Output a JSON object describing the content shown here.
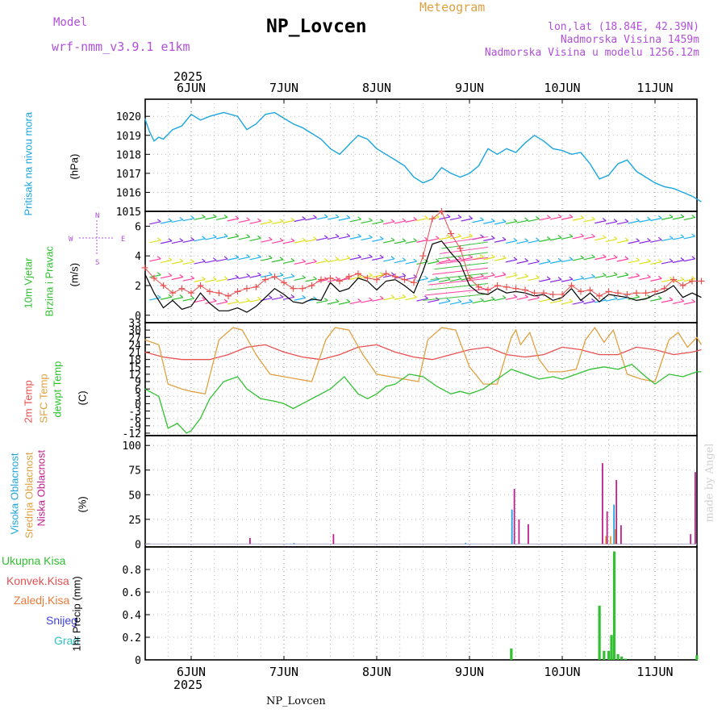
{
  "header": {
    "model_label": "Model",
    "model_name": "wrf-nmm_v3.9.1 e1km",
    "station": "NP_Lovcen",
    "product": "Meteogram",
    "lonlat": "lon,lat (18.84E, 42.39N)",
    "elev": "Nadmorska Visina 1459m",
    "elev_model": "Nadmorska Visina u modelu 1256.12m",
    "year_top": "2025",
    "year_bottom": "2025",
    "footer_station": "NP_Lovcen",
    "credit": "made by Angel"
  },
  "colors": {
    "pressure": "#1ba6e0",
    "temp2m": "#e85050",
    "sfc": "#e0a040",
    "dewpt": "#30c030",
    "cloud_high": "#1ba6e0",
    "cloud_mid": "#e0a040",
    "cloud_low": "#c0208f",
    "precip_total": "#30c030",
    "purple_text": "#b050d8"
  },
  "chart_data": [
    {
      "type": "line",
      "panel": "pressure",
      "ylabel_left": "Pritisak na nivou mora",
      "ylabel_unit": "(hPa)",
      "ylim": [
        1015,
        1020.9
      ],
      "yticks": [
        "1015",
        "1016",
        "1017",
        "1018",
        "1019",
        "1020"
      ],
      "x_days": [
        "6JUN",
        "7JUN",
        "8JUN",
        "9JUN",
        "10JUN",
        "11JUN"
      ],
      "series": [
        {
          "x": [
            -0.5,
            -0.45,
            -0.4,
            -0.35,
            -0.3,
            -0.2,
            -0.1,
            0,
            0.1,
            0.2,
            0.35,
            0.5,
            0.6,
            0.7,
            0.8,
            0.9,
            1.0,
            1.1,
            1.2,
            1.3,
            1.4,
            1.5,
            1.6,
            1.7,
            1.8,
            1.9,
            2.0,
            2.1,
            2.2,
            2.3,
            2.4,
            2.5,
            2.6,
            2.7,
            2.8,
            2.9,
            3.0,
            3.1,
            3.2,
            3.3,
            3.4,
            3.5,
            3.6,
            3.7,
            3.8,
            3.9,
            4.0,
            4.1,
            4.2,
            4.3,
            4.4,
            4.5,
            4.6,
            4.7,
            4.8,
            4.9,
            5.0,
            5.1,
            5.2,
            5.3,
            5.4,
            5.5
          ],
          "values": [
            1019.9,
            1019.2,
            1018.7,
            1018.9,
            1018.8,
            1019.3,
            1019.5,
            1020.1,
            1019.8,
            1020.0,
            1020.2,
            1020.0,
            1019.3,
            1019.6,
            1020.1,
            1020.2,
            1019.9,
            1019.6,
            1019.4,
            1019.1,
            1018.8,
            1018.3,
            1018.0,
            1018.5,
            1019.0,
            1018.8,
            1018.3,
            1018.0,
            1017.7,
            1017.4,
            1016.8,
            1016.5,
            1016.7,
            1017.3,
            1017.0,
            1016.8,
            1017.0,
            1017.4,
            1018.3,
            1018.0,
            1018.3,
            1018.1,
            1018.6,
            1019.0,
            1018.7,
            1018.3,
            1018.2,
            1018.0,
            1018.1,
            1017.5,
            1016.7,
            1016.9,
            1017.5,
            1017.7,
            1017.1,
            1016.8,
            1016.5,
            1016.3,
            1016.2,
            1016.0,
            1015.8,
            1015.5
          ]
        }
      ]
    },
    {
      "type": "line",
      "panel": "wind",
      "ylabel_left": "10m Vjetar",
      "ylabel_left2": "Brzina i Pravac",
      "ylabel_unit": "(m/s)",
      "ylim": [
        -0.5,
        7.0
      ],
      "yticks": [
        "0",
        "2",
        "4",
        "6"
      ],
      "compass": [
        "N",
        "W",
        "E",
        "S"
      ],
      "series": [
        {
          "x": [
            -0.5,
            -0.4,
            -0.3,
            -0.2,
            -0.1,
            0,
            0.1,
            0.2,
            0.3,
            0.4,
            0.5,
            0.6,
            0.7,
            0.8,
            0.9,
            1.0,
            1.1,
            1.2,
            1.3,
            1.4,
            1.5,
            1.6,
            1.7,
            1.8,
            1.9,
            2.0,
            2.1,
            2.2,
            2.3,
            2.4,
            2.5,
            2.6,
            2.7,
            2.8,
            2.9,
            3.0,
            3.1,
            3.2,
            3.3,
            3.4,
            3.5,
            3.6,
            3.7,
            3.8,
            3.9,
            4.0,
            4.1,
            4.2,
            4.3,
            4.4,
            4.5,
            4.6,
            4.7,
            4.8,
            4.9,
            5.0,
            5.1,
            5.2,
            5.3,
            5.4,
            5.5
          ],
          "values": [
            2.8,
            1.5,
            0.5,
            1.0,
            0.4,
            0.6,
            1.5,
            0.8,
            0.3,
            0.3,
            0.5,
            0.2,
            0.6,
            1.2,
            1.8,
            1.4,
            0.9,
            0.8,
            1.1,
            1.0,
            2.2,
            1.6,
            1.8,
            2.5,
            2.3,
            1.7,
            2.3,
            2.4,
            2.0,
            1.5,
            3.0,
            4.8,
            5.0,
            4.2,
            3.5,
            2.0,
            1.5,
            1.4,
            1.8,
            1.5,
            1.6,
            1.5,
            1.3,
            1.4,
            1.0,
            1.2,
            1.8,
            1.0,
            1.5,
            0.9,
            1.4,
            1.3,
            1.2,
            1.0,
            1.1,
            1.4,
            1.6,
            2.0,
            1.2,
            1.5,
            1.2
          ]
        },
        {
          "x": [
            -0.5,
            -0.4,
            -0.3,
            -0.2,
            -0.1,
            0,
            0.1,
            0.2,
            0.3,
            0.4,
            0.5,
            0.6,
            0.7,
            0.8,
            0.9,
            1.0,
            1.1,
            1.2,
            1.3,
            1.4,
            1.5,
            1.6,
            1.7,
            1.8,
            1.9,
            2.0,
            2.1,
            2.2,
            2.3,
            2.4,
            2.5,
            2.6,
            2.7,
            2.8,
            2.9,
            3.0,
            3.1,
            3.2,
            3.3,
            3.4,
            3.5,
            3.6,
            3.7,
            3.8,
            3.9,
            4.0,
            4.1,
            4.2,
            4.3,
            4.4,
            4.5,
            4.6,
            4.7,
            4.8,
            4.9,
            5.0,
            5.1,
            5.2,
            5.3,
            5.4,
            5.5
          ],
          "values": [
            3.2,
            2.5,
            2.0,
            1.5,
            1.8,
            1.5,
            2.0,
            1.6,
            1.5,
            1.3,
            1.6,
            1.8,
            1.9,
            2.4,
            2.6,
            2.2,
            1.8,
            1.8,
            2.0,
            2.4,
            2.5,
            2.3,
            2.6,
            2.8,
            2.5,
            2.4,
            2.8,
            2.6,
            2.4,
            2.2,
            4.0,
            6.5,
            7.0,
            5.5,
            4.5,
            2.5,
            1.9,
            1.7,
            2.0,
            1.9,
            1.8,
            1.7,
            1.5,
            1.5,
            1.4,
            1.4,
            2.0,
            1.6,
            1.7,
            1.3,
            1.6,
            1.5,
            1.4,
            1.5,
            1.5,
            1.6,
            1.8,
            2.4,
            2.0,
            2.3,
            2.3
          ]
        }
      ]
    },
    {
      "type": "line",
      "panel": "temperature",
      "ylabel_left": "2m Temp",
      "ylabel_left2": "SFC Temp",
      "ylabel_left3": "dewpt Temp",
      "ylabel_unit": "(C)",
      "ylim": [
        -13,
        33
      ],
      "yticks": [
        "-12",
        "-9",
        "-6",
        "-3",
        "0",
        "3",
        "6",
        "9",
        "12",
        "15",
        "18",
        "21",
        "24",
        "27",
        "30",
        "33"
      ],
      "series": [
        {
          "name": "2m Temp",
          "x": [
            -0.5,
            -0.3,
            -0.1,
            0,
            0.2,
            0.4,
            0.6,
            0.8,
            1.0,
            1.2,
            1.4,
            1.6,
            1.8,
            2.0,
            2.2,
            2.4,
            2.6,
            2.8,
            3.0,
            3.2,
            3.4,
            3.6,
            3.8,
            4.0,
            4.2,
            4.4,
            4.6,
            4.8,
            5.0,
            5.2,
            5.4,
            5.5
          ],
          "values": [
            21,
            19,
            18,
            18,
            18,
            20,
            23,
            24,
            21,
            19,
            18,
            20,
            23,
            24,
            21,
            19,
            18,
            20,
            22,
            23,
            20,
            19,
            20,
            23,
            22,
            20,
            20,
            23,
            22,
            20,
            21,
            22
          ]
        },
        {
          "name": "SFC Temp",
          "x": [
            -0.5,
            -0.35,
            -0.25,
            -0.1,
            0,
            0.15,
            0.3,
            0.45,
            0.55,
            0.7,
            0.85,
            1.0,
            1.15,
            1.3,
            1.45,
            1.55,
            1.7,
            1.85,
            2.0,
            2.15,
            2.3,
            2.45,
            2.55,
            2.7,
            2.85,
            3.0,
            3.15,
            3.3,
            3.45,
            3.5,
            3.55,
            3.65,
            3.75,
            3.85,
            4.0,
            4.15,
            4.25,
            4.35,
            4.45,
            4.55,
            4.7,
            4.85,
            5.0,
            5.15,
            5.25,
            5.35,
            5.45,
            5.5
          ],
          "values": [
            26,
            24,
            8,
            6,
            5,
            4,
            26,
            31,
            30,
            20,
            12,
            11,
            10,
            9,
            26,
            31,
            30,
            20,
            12,
            11,
            10,
            9,
            26,
            31,
            30,
            15,
            8,
            8,
            27,
            30,
            24,
            29,
            18,
            13,
            13,
            14,
            26,
            31,
            25,
            30,
            12,
            10,
            9,
            26,
            29,
            23,
            27,
            24
          ]
        },
        {
          "name": "dewpt Temp",
          "x": [
            -0.5,
            -0.35,
            -0.25,
            -0.15,
            -0.05,
            0,
            0.1,
            0.2,
            0.35,
            0.5,
            0.6,
            0.75,
            0.9,
            1.0,
            1.1,
            1.2,
            1.35,
            1.5,
            1.65,
            1.8,
            1.9,
            2.0,
            2.1,
            2.2,
            2.35,
            2.5,
            2.65,
            2.8,
            2.9,
            3.0,
            3.15,
            3.3,
            3.45,
            3.6,
            3.75,
            3.9,
            4.0,
            4.15,
            4.3,
            4.45,
            4.6,
            4.75,
            4.9,
            5.0,
            5.15,
            5.3,
            5.45,
            5.5
          ],
          "values": [
            6,
            3,
            -10,
            -8,
            -12,
            -11,
            -6,
            2,
            9,
            11,
            6,
            2,
            1,
            0,
            -2,
            0,
            3,
            6,
            11,
            4,
            2,
            4,
            7,
            8,
            12,
            11,
            7,
            4,
            5,
            4,
            6,
            10,
            14,
            12,
            10,
            11,
            10,
            12,
            14,
            15,
            14,
            16,
            11,
            8,
            12,
            11,
            13,
            13
          ]
        }
      ]
    },
    {
      "type": "bar",
      "panel": "clouds",
      "ylabel_left": "Visoka Oblacnost",
      "ylabel_left2": "Srednja Oblacnost",
      "ylabel_left3": "Niska Oblacnost",
      "ylabel_unit": "(%)",
      "ylim": [
        -3,
        110
      ],
      "yticks": [
        "0",
        "25",
        "50",
        "75",
        "100"
      ],
      "series": [
        {
          "name": "Visoka Oblacnost",
          "x": [
            1.1,
            2.95,
            3.45,
            4.55
          ],
          "values": [
            1,
            1,
            35,
            40
          ]
        },
        {
          "name": "Srednja Oblacnost",
          "x": [
            4.45,
            4.5,
            4.55
          ],
          "values": [
            8,
            8,
            15
          ]
        },
        {
          "name": "Niska Oblacnost",
          "x": [
            0.6,
            1.5,
            3.45,
            3.5,
            3.6,
            4.4,
            4.45,
            4.55,
            4.6,
            5.35,
            5.4
          ],
          "values": [
            6,
            10,
            56,
            25,
            20,
            82,
            33,
            65,
            19,
            10,
            73
          ]
        }
      ]
    },
    {
      "type": "bar",
      "panel": "precip",
      "ylabel_legend": [
        "Ukupna Kisa",
        "Konvek.Kisa",
        "Zaledj.Kisa",
        "Snijeg",
        "Grad"
      ],
      "ylabel_unit": "1hr Precip (mm)",
      "ylim": [
        0,
        1.0
      ],
      "yticks": [
        "0",
        "0.2",
        "0.4",
        "0.6",
        "0.8"
      ],
      "series": [
        {
          "name": "Ukupna Kisa",
          "x": [
            3.45,
            4.4,
            4.45,
            4.5,
            4.53,
            4.56,
            4.6,
            4.64,
            4.68,
            5.45
          ],
          "values": [
            0.1,
            0.48,
            0.08,
            0.08,
            0.22,
            0.96,
            0.05,
            0.03,
            0.01,
            0.04
          ]
        }
      ]
    }
  ]
}
